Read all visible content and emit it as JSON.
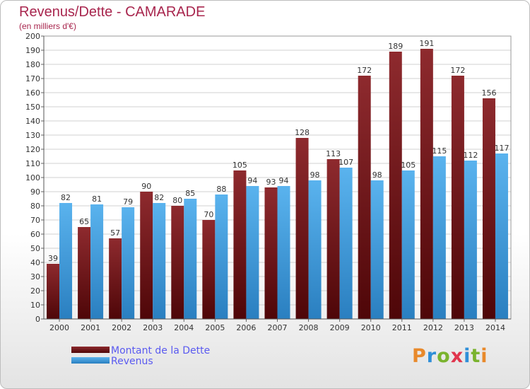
{
  "header": {
    "title": "Revenus/Dette - CAMARADE",
    "subtitle": "(en milliers d'€)"
  },
  "colors": {
    "debt": "#7a1e22",
    "revenue": "#3d9ce0",
    "title": "#a8264e",
    "legend_text": "#5a5af0"
  },
  "logo": {
    "text": "Proxiti",
    "colors": [
      "#e8892b",
      "#2f8fd8",
      "#7ab32e",
      "#e0354d",
      "#2f8fd8",
      "#7ab32e",
      "#e8892b"
    ]
  },
  "chart_data": {
    "type": "bar",
    "categories": [
      "2000",
      "2001",
      "2002",
      "2003",
      "2004",
      "2005",
      "2006",
      "2007",
      "2008",
      "2009",
      "2010",
      "2011",
      "2012",
      "2013",
      "2014"
    ],
    "series": [
      {
        "name": "Montant de la Dette",
        "values": [
          39,
          65,
          57,
          90,
          80,
          70,
          105,
          93,
          128,
          113,
          172,
          189,
          191,
          172,
          156
        ]
      },
      {
        "name": "Revenus",
        "values": [
          82,
          81,
          79,
          82,
          85,
          88,
          94,
          94,
          98,
          107,
          98,
          105,
          115,
          112,
          117
        ]
      }
    ],
    "ylim": [
      0,
      200
    ],
    "y_ticks": [
      0,
      10,
      20,
      30,
      40,
      50,
      60,
      70,
      80,
      90,
      100,
      110,
      120,
      130,
      140,
      150,
      160,
      170,
      180,
      190,
      200
    ],
    "grid": true,
    "legend_position": "bottom-left",
    "data_labels": true
  }
}
